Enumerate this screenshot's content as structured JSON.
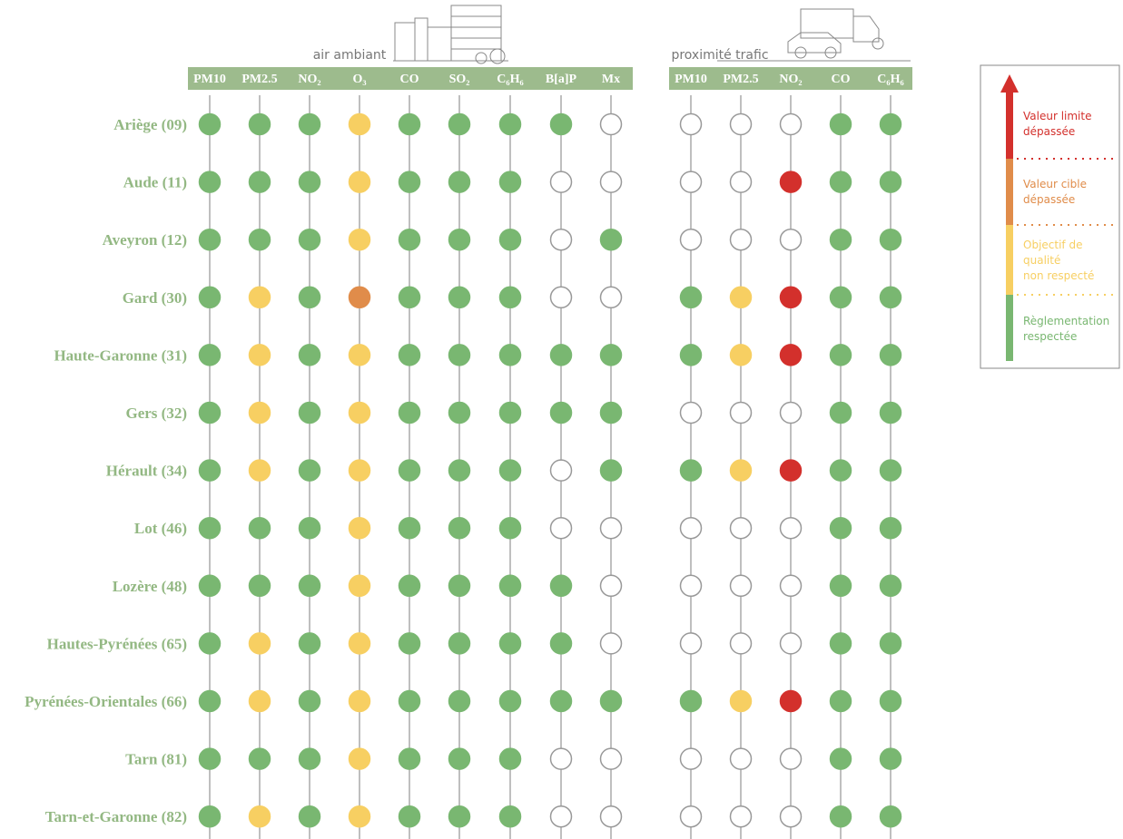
{
  "groups": [
    {
      "title": "air ambiant",
      "columns": [
        "PM10",
        "PM2.5",
        "NO₂",
        "O₃",
        "CO",
        "SO₂",
        "C₆H₆",
        "B[a]P",
        "Mx"
      ]
    },
    {
      "title": "proximité trafic",
      "columns": [
        "PM10",
        "PM2.5",
        "NO₂",
        "CO",
        "C₆H₆"
      ]
    }
  ],
  "rows": [
    {
      "label": "Ariège (09)",
      "cells": [
        "#79b771",
        "#79b771",
        "#79b771",
        "#f7cf62",
        "#79b771",
        "#79b771",
        "#79b771",
        "#79b771",
        null,
        null,
        null,
        null,
        "#79b771",
        "#79b771"
      ]
    },
    {
      "label": "Aude (11)",
      "cells": [
        "#79b771",
        "#79b771",
        "#79b771",
        "#f7cf62",
        "#79b771",
        "#79b771",
        "#79b771",
        null,
        null,
        null,
        null,
        "#d3302c",
        "#79b771",
        "#79b771"
      ]
    },
    {
      "label": "Aveyron (12)",
      "cells": [
        "#79b771",
        "#79b771",
        "#79b771",
        "#f7cf62",
        "#79b771",
        "#79b771",
        "#79b771",
        null,
        "#79b771",
        null,
        null,
        null,
        "#79b771",
        "#79b771"
      ]
    },
    {
      "label": "Gard (30)",
      "cells": [
        "#79b771",
        "#f7cf62",
        "#79b771",
        "#e08c4a",
        "#79b771",
        "#79b771",
        "#79b771",
        null,
        null,
        "#79b771",
        "#f7cf62",
        "#d3302c",
        "#79b771",
        "#79b771"
      ]
    },
    {
      "label": "Haute-Garonne (31)",
      "cells": [
        "#79b771",
        "#f7cf62",
        "#79b771",
        "#f7cf62",
        "#79b771",
        "#79b771",
        "#79b771",
        "#79b771",
        "#79b771",
        "#79b771",
        "#f7cf62",
        "#d3302c",
        "#79b771",
        "#79b771"
      ]
    },
    {
      "label": "Gers (32)",
      "cells": [
        "#79b771",
        "#f7cf62",
        "#79b771",
        "#f7cf62",
        "#79b771",
        "#79b771",
        "#79b771",
        "#79b771",
        "#79b771",
        null,
        null,
        null,
        "#79b771",
        "#79b771"
      ]
    },
    {
      "label": "Hérault (34)",
      "cells": [
        "#79b771",
        "#f7cf62",
        "#79b771",
        "#f7cf62",
        "#79b771",
        "#79b771",
        "#79b771",
        null,
        "#79b771",
        "#79b771",
        "#f7cf62",
        "#d3302c",
        "#79b771",
        "#79b771"
      ]
    },
    {
      "label": "Lot (46)",
      "cells": [
        "#79b771",
        "#79b771",
        "#79b771",
        "#f7cf62",
        "#79b771",
        "#79b771",
        "#79b771",
        null,
        null,
        null,
        null,
        null,
        "#79b771",
        "#79b771"
      ]
    },
    {
      "label": "Lozère (48)",
      "cells": [
        "#79b771",
        "#79b771",
        "#79b771",
        "#f7cf62",
        "#79b771",
        "#79b771",
        "#79b771",
        "#79b771",
        null,
        null,
        null,
        null,
        "#79b771",
        "#79b771"
      ]
    },
    {
      "label": "Hautes-Pyrénées (65)",
      "cells": [
        "#79b771",
        "#f7cf62",
        "#79b771",
        "#f7cf62",
        "#79b771",
        "#79b771",
        "#79b771",
        "#79b771",
        null,
        null,
        null,
        null,
        "#79b771",
        "#79b771"
      ]
    },
    {
      "label": "Pyrénées-Orientales (66)",
      "cells": [
        "#79b771",
        "#f7cf62",
        "#79b771",
        "#f7cf62",
        "#79b771",
        "#79b771",
        "#79b771",
        "#79b771",
        "#79b771",
        "#79b771",
        "#f7cf62",
        "#d3302c",
        "#79b771",
        "#79b771"
      ]
    },
    {
      "label": "Tarn (81)",
      "cells": [
        "#79b771",
        "#79b771",
        "#79b771",
        "#f7cf62",
        "#79b771",
        "#79b771",
        "#79b771",
        null,
        null,
        null,
        null,
        null,
        "#79b771",
        "#79b771"
      ]
    },
    {
      "label": "Tarn-et-Garonne (82)",
      "cells": [
        "#79b771",
        "#f7cf62",
        "#79b771",
        "#f7cf62",
        "#79b771",
        "#79b771",
        "#79b771",
        null,
        null,
        null,
        null,
        null,
        "#79b771",
        "#79b771"
      ]
    }
  ],
  "legend": [
    {
      "lines": [
        "Valeur limite",
        "dépassée"
      ],
      "color": "#d3302c"
    },
    {
      "lines": [
        "Valeur cible",
        "dépassée"
      ],
      "color": "#e08c4a"
    },
    {
      "lines": [
        "Objectif de",
        "qualité",
        "non respecté"
      ],
      "color": "#f7cf62"
    },
    {
      "lines": [
        "Règlementation",
        "respectée"
      ],
      "color": "#79b771"
    }
  ]
}
